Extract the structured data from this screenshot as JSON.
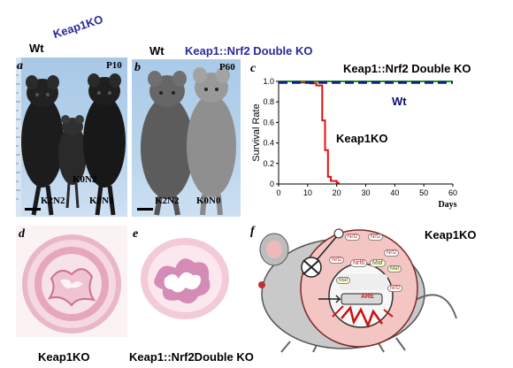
{
  "panels": {
    "a": {
      "letter": "a",
      "top_left_label": "Wt",
      "top_rotated_label": "Keap1KO",
      "age": "P10",
      "genotype_labels": [
        "K0N2",
        "K2N2",
        "K0N0"
      ]
    },
    "b": {
      "letter": "b",
      "top_left_label": "Wt",
      "top_label": "Keap1::Nrf2 Double KO",
      "age": "P60",
      "genotype_labels": [
        "K2N2",
        "K0N0"
      ]
    },
    "c": {
      "letter": "c",
      "title": "Keap1::Nrf2 Double KO",
      "wt_label": "Wt",
      "ko_label": "Keap1KO"
    },
    "d": {
      "letter": "d",
      "caption": "Keap1KO"
    },
    "e": {
      "letter": "e",
      "caption": "Keap1::Nrf2Double KO"
    },
    "f": {
      "letter": "f",
      "label": "Keap1KO",
      "bubbles": [
        "Nrf2",
        "Nrf2",
        "Nrf2",
        "Nrf2",
        "Nrf6",
        "Maf",
        "Maf",
        "Nrf2",
        "Maf"
      ],
      "are_label": "ARE"
    }
  },
  "chart_data": {
    "type": "line",
    "xlabel": "Days",
    "ylabel": "Survival Rate",
    "xlim": [
      0,
      60
    ],
    "ylim": [
      0,
      1.0
    ],
    "xticks": [
      "0",
      "10",
      "20",
      "30",
      "40",
      "50",
      "60"
    ],
    "yticks": [
      "0",
      "0.2",
      "0.4",
      "0.6",
      "0.8",
      "1.0"
    ],
    "grid": false,
    "series": [
      {
        "name": "Keap1::Nrf2 Double KO",
        "color": "#1a9a1a",
        "dash": "solid",
        "x": [
          0,
          60
        ],
        "y": [
          1.0,
          1.0
        ]
      },
      {
        "name": "Wt",
        "color": "#1a1a8c",
        "dash": "dashed",
        "x": [
          0,
          60
        ],
        "y": [
          0.99,
          0.99
        ]
      },
      {
        "name": "Keap1KO",
        "color": "#e01010",
        "dash": "solid",
        "x": [
          0,
          6,
          6,
          11,
          11,
          13,
          13,
          15,
          15,
          16,
          16,
          17,
          17,
          18,
          18,
          19,
          19,
          20,
          20,
          21
        ],
        "y": [
          1.0,
          1.0,
          0.99,
          0.99,
          0.98,
          0.98,
          0.96,
          0.96,
          0.62,
          0.62,
          0.33,
          0.33,
          0.07,
          0.07,
          0.03,
          0.03,
          0.03,
          0.03,
          0.01,
          0.01
        ]
      }
    ]
  }
}
